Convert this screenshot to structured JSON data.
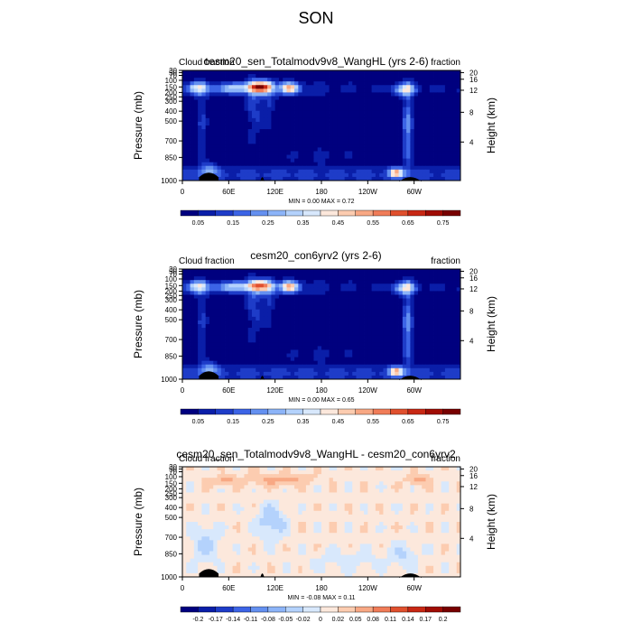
{
  "page": {
    "title": "SON"
  },
  "chart_data": [
    {
      "type": "heatmap",
      "title": "cesm20_sen_Totalmodv9v8_WangHL (yrs 2-6)",
      "left_string": "Cloud fraction",
      "right_string": "fraction",
      "ylabel": "Pressure (mb)",
      "ylabel_right": "Height (km)",
      "xticks": [
        "0",
        "60E",
        "120E",
        "180",
        "120W",
        "60W"
      ],
      "yticks_pressure": [
        "30",
        "50",
        "70",
        "100",
        "150",
        "200",
        "250",
        "300",
        "400",
        "500",
        "700",
        "850",
        "1000"
      ],
      "yticks_height": [
        "20",
        "16",
        "12",
        "8",
        "4"
      ],
      "stats_label": "MIN =   0.00  MAX =   0.72",
      "colorbar_labels": [
        "0.05",
        "0.15",
        "0.25",
        "0.35",
        "0.45",
        "0.55",
        "0.65",
        "0.75"
      ],
      "palette": [
        "#00007f",
        "#0a1ea8",
        "#1e3cc8",
        "#3c64e6",
        "#6490f0",
        "#8cb4f8",
        "#b4d2fc",
        "#d8e8fc",
        "#fce8dc",
        "#fcccb0",
        "#f8a884",
        "#f07c58",
        "#e0502e",
        "#c82814",
        "#a00c04",
        "#780000"
      ],
      "field": "base"
    },
    {
      "type": "heatmap",
      "title": "cesm20_con6yrv2 (yrs 2-6)",
      "left_string": "Cloud fraction",
      "right_string": "fraction",
      "ylabel": "Pressure (mb)",
      "ylabel_right": "Height (km)",
      "xticks": [
        "0",
        "60E",
        "120E",
        "180",
        "120W",
        "60W"
      ],
      "yticks_pressure": [
        "30",
        "50",
        "70",
        "100",
        "150",
        "200",
        "250",
        "300",
        "400",
        "500",
        "700",
        "850",
        "1000"
      ],
      "yticks_height": [
        "20",
        "16",
        "12",
        "8",
        "4"
      ],
      "stats_label": "MIN =   0.00  MAX =   0.65",
      "colorbar_labels": [
        "0.05",
        "0.15",
        "0.25",
        "0.35",
        "0.45",
        "0.55",
        "0.65",
        "0.75"
      ],
      "palette": [
        "#00007f",
        "#0a1ea8",
        "#1e3cc8",
        "#3c64e6",
        "#6490f0",
        "#8cb4f8",
        "#b4d2fc",
        "#d8e8fc",
        "#fce8dc",
        "#fcccb0",
        "#f8a884",
        "#f07c58",
        "#e0502e",
        "#c82814",
        "#a00c04",
        "#780000"
      ],
      "field": "base"
    },
    {
      "type": "heatmap",
      "title": "cesm20_sen_Totalmodv9v8_WangHL - cesm20_con6yrv2",
      "left_string": "Cloud fraction",
      "right_string": "fraction",
      "ylabel": "Pressure (mb)",
      "ylabel_right": "Height (km)",
      "xticks": [
        "0",
        "60E",
        "120E",
        "180",
        "120W",
        "60W"
      ],
      "yticks_pressure": [
        "30",
        "50",
        "70",
        "100",
        "150",
        "200",
        "250",
        "300",
        "400",
        "500",
        "700",
        "850",
        "1000"
      ],
      "yticks_height": [
        "20",
        "16",
        "12",
        "8",
        "4"
      ],
      "stats_label": "MIN =  -0.08  MAX =   0.11",
      "colorbar_labels": [
        "-0.2",
        "-0.17",
        "-0.14",
        "-0.11",
        "-0.08",
        "-0.05",
        "-0.02",
        "0",
        "0.02",
        "0.05",
        "0.08",
        "0.11",
        "0.14",
        "0.17",
        "0.2"
      ],
      "palette": [
        "#00007f",
        "#0a1ea8",
        "#1e3cc8",
        "#3c64e6",
        "#6490f0",
        "#8cb4f8",
        "#b4d2fc",
        "#d8e8fc",
        "#fce8dc",
        "#fcccb0",
        "#f8a884",
        "#f07c58",
        "#e0502e",
        "#c82814",
        "#a00c04",
        "#780000"
      ],
      "field": "diff"
    }
  ]
}
